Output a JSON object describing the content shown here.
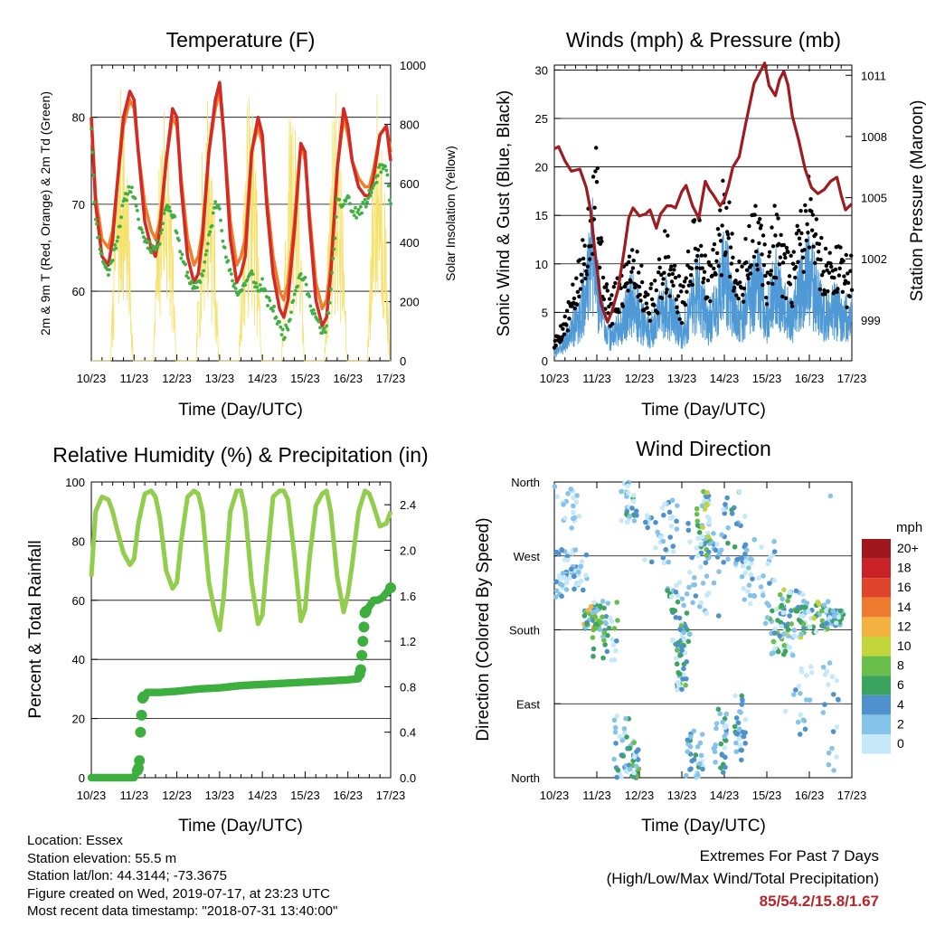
{
  "panels": {
    "temperature": {
      "title": "Temperature (F)",
      "ylabel_left": "2m & 9m T (Red, Orange) & 2m Td (Green)",
      "ylabel_right": "Solar Insolation (Yellow)",
      "xlabel": "Time (Day/UTC)"
    },
    "winds": {
      "title": "Winds (mph) & Pressure (mb)",
      "ylabel_left": "Sonic Wind & Gust (Blue, Black)",
      "ylabel_right": "Station Pressure (Maroon)",
      "xlabel": "Time (Day/UTC)"
    },
    "humidity": {
      "title": "Relative Humidity (%) & Precipitation (in)",
      "ylabel_left": "Percent & Total Rainfall",
      "xlabel": "Time (Day/UTC)"
    },
    "direction": {
      "title": "Wind Direction",
      "ylabel_left": "Direction (Colored By Speed)",
      "xlabel": "Time (Day/UTC)",
      "colorbar_unit": "mph"
    }
  },
  "info": {
    "location": "Location: Essex",
    "elevation": "Station elevation: 55.5 m",
    "latlon": "Station lat/lon: 44.3144; -73.3675",
    "created": "Figure created on Wed, 2019-07-17, at 23:23 UTC",
    "recent": "Most recent data timestamp: \"2018-07-31 13:40:00\""
  },
  "extremes": {
    "title": "Extremes For Past 7 Days",
    "subtitle": "(High/Low/Max Wind/Total Precipitation)",
    "values": "85/54.2/15.8/1.67"
  },
  "colors": {
    "temp2m": "#d42a25",
    "temp9m": "#f07d2a",
    "dewpoint": "#3fb142",
    "solar": "#f6e16b",
    "wind": "#4f9ad6",
    "gust": "#000000",
    "pressure": "#9e1c1f",
    "rh": "#93cd4d",
    "precip": "#3daf3f"
  },
  "chart_data": [
    {
      "type": "line",
      "panel": "temperature",
      "x_ticks": [
        "10/23",
        "11/23",
        "12/23",
        "13/23",
        "14/23",
        "15/23",
        "16/23",
        "17/23"
      ],
      "ylim": [
        52,
        86
      ],
      "y_ticks": [
        60,
        70,
        80
      ],
      "y2lim": [
        0,
        1000
      ],
      "y2_ticks": [
        0,
        200,
        400,
        600,
        800,
        1000
      ],
      "series": [
        {
          "label": "2m T",
          "axis": "left",
          "x": [
            0,
            0.1,
            0.25,
            0.4,
            0.5,
            0.6,
            0.75,
            0.9,
            1.0,
            1.1,
            1.25,
            1.4,
            1.5,
            1.6,
            1.75,
            1.9,
            2.0,
            2.1,
            2.25,
            2.4,
            2.5,
            2.6,
            2.75,
            2.9,
            3.0,
            3.1,
            3.25,
            3.4,
            3.5,
            3.6,
            3.75,
            3.9,
            4.0,
            4.1,
            4.25,
            4.4,
            4.5,
            4.6,
            4.75,
            4.9,
            5.0,
            5.1,
            5.25,
            5.4,
            5.5,
            5.6,
            5.75,
            5.9,
            6.0,
            6.1,
            6.25,
            6.4,
            6.5,
            6.6,
            6.75,
            6.9,
            7.0
          ],
          "y": [
            80,
            70,
            64,
            63,
            66,
            72,
            80,
            83,
            82,
            76,
            68,
            65,
            64,
            67,
            75,
            81,
            80,
            72,
            64,
            61,
            62,
            66,
            76,
            82,
            84,
            78,
            66,
            61,
            62,
            64,
            76,
            80,
            78,
            70,
            62,
            58,
            57,
            59,
            67,
            77,
            76,
            68,
            59,
            56,
            57,
            62,
            74,
            81,
            79,
            75,
            72,
            71,
            71,
            73,
            78,
            79,
            75
          ]
        },
        {
          "label": "9m T",
          "axis": "left",
          "x": [
            0,
            0.1,
            0.25,
            0.4,
            0.5,
            0.6,
            0.75,
            0.9,
            1.0,
            1.1,
            1.25,
            1.4,
            1.5,
            1.6,
            1.75,
            1.9,
            2.0,
            2.1,
            2.25,
            2.4,
            2.5,
            2.6,
            2.75,
            2.9,
            3.0,
            3.1,
            3.25,
            3.4,
            3.5,
            3.6,
            3.75,
            3.9,
            4.0,
            4.1,
            4.25,
            4.4,
            4.5,
            4.6,
            4.75,
            4.9,
            5.0,
            5.1,
            5.25,
            5.4,
            5.5,
            5.6,
            5.75,
            5.9,
            6.0,
            6.1,
            6.25,
            6.4,
            6.5,
            6.6,
            6.75,
            6.9,
            7.0
          ],
          "y": [
            80,
            71,
            66,
            65,
            67,
            72,
            79,
            82,
            81,
            76,
            70,
            67,
            66,
            68,
            75,
            80,
            79,
            73,
            66,
            63,
            64,
            67,
            76,
            81,
            83,
            78,
            68,
            63,
            64,
            66,
            76,
            79,
            77,
            71,
            64,
            60,
            59,
            61,
            68,
            77,
            75,
            69,
            61,
            58,
            59,
            63,
            74,
            80,
            78,
            75,
            73,
            72,
            72,
            74,
            78,
            79,
            76
          ]
        },
        {
          "label": "2m Td",
          "axis": "left",
          "x": [
            0,
            0.1,
            0.25,
            0.4,
            0.5,
            0.6,
            0.75,
            0.9,
            1.0,
            1.1,
            1.25,
            1.4,
            1.5,
            1.6,
            1.75,
            1.9,
            2.0,
            2.1,
            2.25,
            2.4,
            2.5,
            2.6,
            2.75,
            2.9,
            3.0,
            3.1,
            3.25,
            3.4,
            3.5,
            3.6,
            3.75,
            3.9,
            4.0,
            4.1,
            4.25,
            4.4,
            4.5,
            4.6,
            4.75,
            4.9,
            5.0,
            5.1,
            5.25,
            5.4,
            5.5,
            5.6,
            5.75,
            5.9,
            6.0,
            6.1,
            6.25,
            6.4,
            6.5,
            6.6,
            6.75,
            6.9,
            7.0
          ],
          "y": [
            79,
            68,
            64,
            62,
            64,
            66,
            70,
            72,
            71,
            68,
            66,
            65,
            65,
            66,
            70,
            69,
            67,
            64,
            62,
            60,
            61,
            62,
            66,
            70,
            70,
            65,
            62,
            60,
            60,
            61,
            62,
            60,
            61,
            59,
            58,
            56,
            55,
            56,
            60,
            62,
            61,
            59,
            57,
            55,
            56,
            60,
            70,
            70,
            71,
            69,
            69,
            70,
            71,
            72,
            74,
            74,
            70
          ]
        },
        {
          "label": "Solar Insolation",
          "axis": "right",
          "note": "daily diurnal peaks up to ~950 W/m2"
        }
      ]
    },
    {
      "type": "line",
      "panel": "winds",
      "x_ticks": [
        "10/23",
        "11/23",
        "12/23",
        "13/23",
        "14/23",
        "15/23",
        "16/23",
        "17/23"
      ],
      "ylim": [
        0,
        30.5
      ],
      "y_ticks": [
        0,
        5,
        10,
        15,
        20,
        25,
        30
      ],
      "y2lim": [
        997,
        1011.5
      ],
      "y2_ticks": [
        999,
        1002,
        1005,
        1008,
        1011
      ],
      "series": [
        {
          "label": "Station Pressure",
          "axis": "right",
          "x": [
            0,
            0.1,
            0.25,
            0.4,
            0.6,
            0.75,
            0.85,
            0.95,
            1.1,
            1.25,
            1.35,
            1.5,
            1.65,
            1.75,
            1.85,
            2.0,
            2.15,
            2.25,
            2.4,
            2.5,
            2.65,
            2.75,
            2.85,
            3.0,
            3.1,
            3.25,
            3.4,
            3.55,
            3.65,
            3.75,
            3.9,
            4.0,
            4.1,
            4.2,
            4.35,
            4.5,
            4.6,
            4.7,
            4.8,
            4.95,
            5.05,
            5.2,
            5.3,
            5.4,
            5.5,
            5.6,
            5.75,
            5.9,
            6.05,
            6.2,
            6.35,
            6.5,
            6.65,
            6.75,
            6.85,
            7.0
          ],
          "y": [
            1007.4,
            1007.5,
            1006.8,
            1006.3,
            1006.4,
            1005.5,
            1004.4,
            1002.5,
            999.8,
            998.9,
            999.4,
            1000.5,
            1002.5,
            1004.0,
            1004.5,
            1004.1,
            1004.2,
            1004.4,
            1003.5,
            1004.2,
            1004.6,
            1004.6,
            1004.5,
            1005.3,
            1005.6,
            1004.6,
            1004.0,
            1005.8,
            1005.4,
            1005.1,
            1004.6,
            1004.9,
            1005.6,
            1006.5,
            1007.0,
            1008.6,
            1009.6,
            1010.6,
            1011.0,
            1011.6,
            1010.5,
            1010.0,
            1010.8,
            1011.2,
            1010.5,
            1009.0,
            1007.8,
            1006.4,
            1005.5,
            1005.2,
            1005.4,
            1005.8,
            1006.0,
            1005.1,
            1004.4,
            1004.7
          ]
        },
        {
          "label": "Sonic Wind",
          "axis": "left",
          "x": [
            0,
            0.3,
            0.6,
            0.8,
            0.9,
            1.1,
            1.3,
            1.6,
            1.8,
            2.0,
            2.2,
            2.4,
            2.6,
            2.8,
            3.0,
            3.2,
            3.4,
            3.6,
            3.8,
            4.0,
            4.2,
            4.4,
            4.6,
            4.8,
            5.0,
            5.2,
            5.4,
            5.6,
            5.8,
            6.0,
            6.2,
            6.4,
            6.6,
            6.8,
            7.0
          ],
          "y": [
            1,
            3,
            6,
            11,
            14,
            7,
            3,
            5,
            8,
            6,
            4,
            5,
            8,
            6,
            4,
            7,
            10,
            5,
            7,
            12,
            8,
            5,
            9,
            11,
            6,
            10,
            7,
            6,
            9,
            12,
            8,
            6,
            7,
            6,
            6
          ]
        },
        {
          "label": "Gust",
          "axis": "left",
          "x": [
            0,
            0.3,
            0.6,
            0.8,
            0.9,
            1.0,
            1.1,
            1.3,
            1.6,
            1.8,
            2.0,
            2.2,
            2.4,
            2.6,
            2.8,
            3.0,
            3.2,
            3.4,
            3.6,
            3.8,
            4.0,
            4.2,
            4.4,
            4.6,
            4.8,
            5.0,
            5.2,
            5.4,
            5.6,
            5.8,
            6.0,
            6.2,
            6.4,
            6.6,
            6.8,
            7.0
          ],
          "y": [
            2,
            5,
            10,
            16,
            20,
            24,
            12,
            6,
            9,
            13,
            10,
            7,
            8,
            13,
            10,
            7,
            12,
            16,
            9,
            12,
            18,
            13,
            9,
            14,
            16,
            10,
            15,
            11,
            10,
            15,
            19,
            13,
            11,
            12,
            10,
            10
          ]
        }
      ]
    },
    {
      "type": "line",
      "panel": "humidity",
      "x_ticks": [
        "10/23",
        "11/23",
        "12/23",
        "13/23",
        "14/23",
        "15/23",
        "16/23",
        "17/23"
      ],
      "ylim": [
        0,
        100
      ],
      "y_ticks": [
        0,
        20,
        40,
        60,
        80,
        100
      ],
      "y2lim": [
        0,
        2.6
      ],
      "y2_ticks": [
        0.0,
        0.4,
        0.8,
        1.2,
        1.6,
        2.0,
        2.4
      ],
      "series": [
        {
          "label": "Relative Humidity",
          "axis": "left",
          "x": [
            0,
            0.1,
            0.25,
            0.4,
            0.5,
            0.6,
            0.75,
            0.9,
            1.0,
            1.1,
            1.25,
            1.4,
            1.5,
            1.6,
            1.75,
            1.9,
            2.0,
            2.1,
            2.25,
            2.4,
            2.5,
            2.6,
            2.75,
            2.9,
            3.0,
            3.1,
            3.25,
            3.4,
            3.5,
            3.6,
            3.75,
            3.9,
            4.0,
            4.1,
            4.25,
            4.4,
            4.5,
            4.6,
            4.75,
            4.9,
            5.0,
            5.1,
            5.25,
            5.4,
            5.5,
            5.6,
            5.75,
            5.9,
            6.0,
            6.1,
            6.25,
            6.4,
            6.5,
            6.6,
            6.75,
            6.9,
            7.0
          ],
          "y": [
            68,
            90,
            95,
            94,
            90,
            84,
            76,
            72,
            74,
            86,
            96,
            97,
            95,
            88,
            70,
            64,
            66,
            80,
            95,
            97,
            96,
            90,
            66,
            55,
            50,
            62,
            90,
            97,
            97,
            90,
            66,
            52,
            55,
            72,
            95,
            97,
            97,
            94,
            75,
            53,
            57,
            74,
            92,
            96,
            97,
            90,
            68,
            56,
            62,
            72,
            90,
            97,
            96,
            92,
            85,
            86,
            90
          ]
        },
        {
          "label": "Total Precipitation",
          "axis": "right",
          "x": [
            0,
            1.0,
            1.12,
            1.15,
            1.2,
            1.3,
            1.6,
            2.0,
            2.5,
            3.0,
            3.5,
            4.0,
            4.5,
            5.0,
            5.5,
            6.0,
            6.25,
            6.3,
            6.35,
            6.4,
            6.6,
            6.7,
            6.8,
            7.0
          ],
          "y": [
            0,
            0,
            0.1,
            0.4,
            0.7,
            0.75,
            0.75,
            0.76,
            0.78,
            0.79,
            0.81,
            0.82,
            0.83,
            0.84,
            0.85,
            0.86,
            0.87,
            0.95,
            1.2,
            1.45,
            1.56,
            1.56,
            1.58,
            1.67
          ]
        }
      ]
    },
    {
      "type": "scatter",
      "panel": "direction",
      "x_ticks": [
        "10/23",
        "11/23",
        "12/23",
        "13/23",
        "14/23",
        "15/23",
        "16/23",
        "17/23"
      ],
      "y_ticks": [
        "North",
        "East",
        "South",
        "West",
        "North"
      ],
      "ylim": [
        0,
        360
      ],
      "colorbar_labels": [
        "0",
        "2",
        "4",
        "6",
        "8",
        "10",
        "12",
        "14",
        "16",
        "18",
        "20+"
      ],
      "colorbar_colors": [
        "#c6e9fa",
        "#86c3ea",
        "#4f91cc",
        "#3ba45f",
        "#6abf4b",
        "#c4d53c",
        "#f3b242",
        "#ee7a2e",
        "#e0442b",
        "#c82126",
        "#a1181c"
      ]
    }
  ]
}
